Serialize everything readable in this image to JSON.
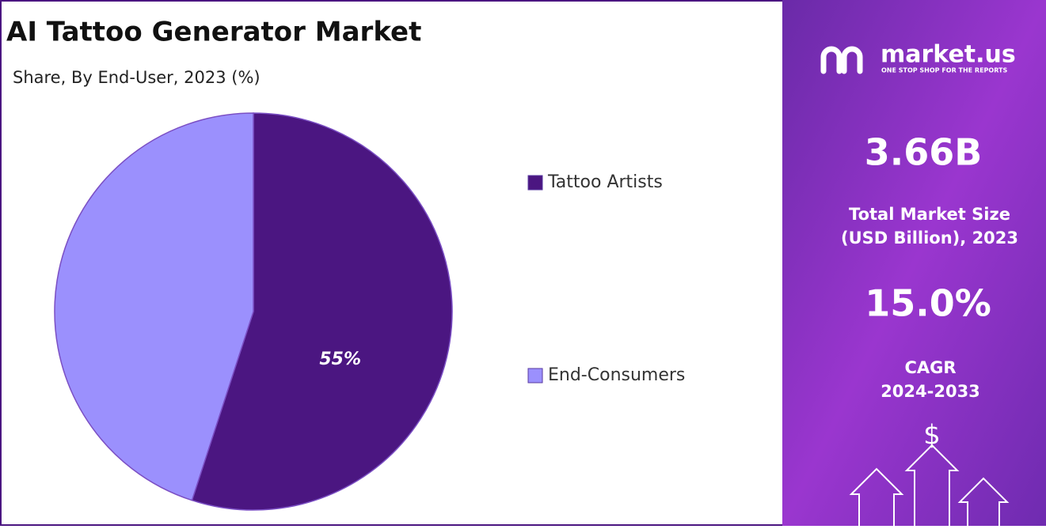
{
  "chart_data": {
    "type": "pie",
    "title": "AI Tattoo Generator Market",
    "subtitle": "Share, By End-User, 2023 (%)",
    "categories": [
      "Tattoo Artists",
      "End-Consumers"
    ],
    "values": [
      55,
      45
    ],
    "value_labels": [
      "55%",
      null
    ],
    "colors": [
      "#4b1681",
      "#9b90fd"
    ],
    "legend": "right"
  },
  "side_panel": {
    "logo": {
      "name": "market.us",
      "tagline": "ONE STOP SHOP FOR THE REPORTS"
    },
    "market_size": {
      "value": "3.66B",
      "label_lines": [
        "Total Market Size",
        "(USD Billion), 2023"
      ]
    },
    "cagr": {
      "value": "15.0%",
      "label_lines": [
        "CAGR",
        "2024-2033"
      ]
    },
    "icon": "$"
  }
}
